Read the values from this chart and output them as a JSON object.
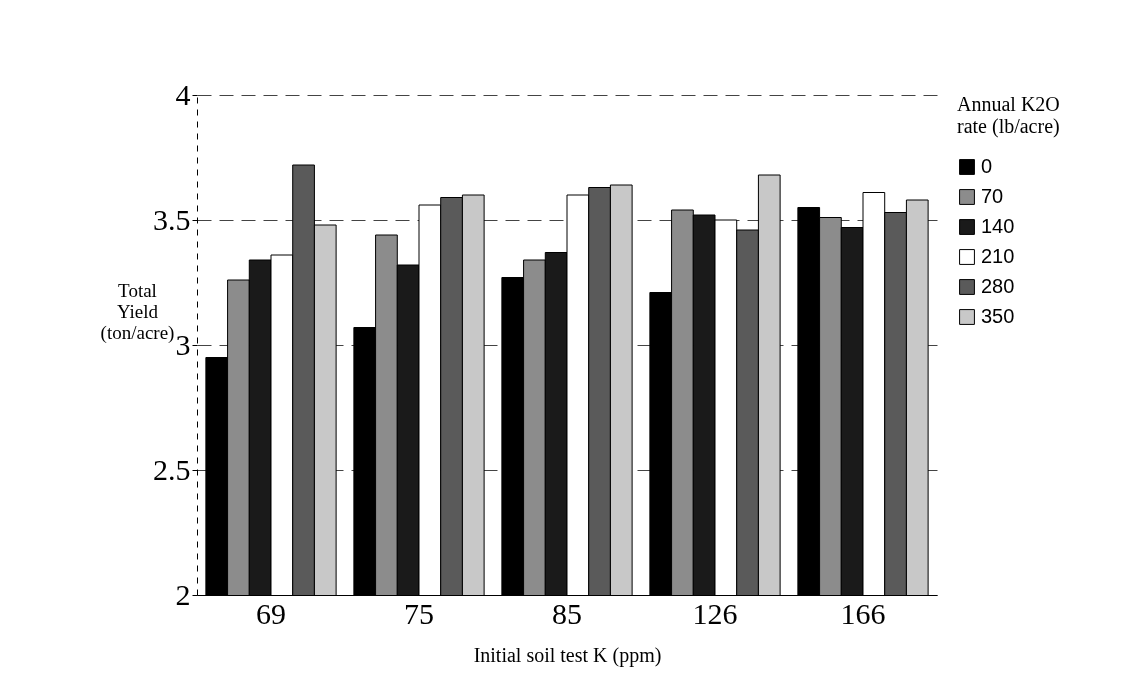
{
  "chart_data": {
    "type": "bar",
    "xlabel": "Initial soil test K (ppm)",
    "ylabel": "Total Yield (ton/acre)",
    "legend_title": "Annual K2O rate (lb/acre)",
    "categories": [
      "69",
      "75",
      "85",
      "126",
      "166"
    ],
    "series": [
      {
        "name": "0",
        "color": "#000000",
        "values": [
          2.95,
          3.07,
          3.27,
          3.21,
          3.55
        ]
      },
      {
        "name": "70",
        "color": "#8c8c8c",
        "values": [
          3.26,
          3.44,
          3.34,
          3.54,
          3.51
        ]
      },
      {
        "name": "140",
        "color": "#1a1a1a",
        "values": [
          3.34,
          3.32,
          3.37,
          3.52,
          3.47
        ]
      },
      {
        "name": "210",
        "color": "#ffffff",
        "values": [
          3.36,
          3.56,
          3.6,
          3.5,
          3.61
        ]
      },
      {
        "name": "280",
        "color": "#5a5a5a",
        "values": [
          3.72,
          3.59,
          3.63,
          3.46,
          3.53
        ]
      },
      {
        "name": "350",
        "color": "#c8c8c8",
        "values": [
          3.48,
          3.6,
          3.64,
          3.68,
          3.58
        ]
      }
    ],
    "ylim": [
      2,
      4
    ],
    "yticks": [
      2,
      2.5,
      3,
      3.5,
      4
    ],
    "grid": "y",
    "legend": "top right"
  }
}
